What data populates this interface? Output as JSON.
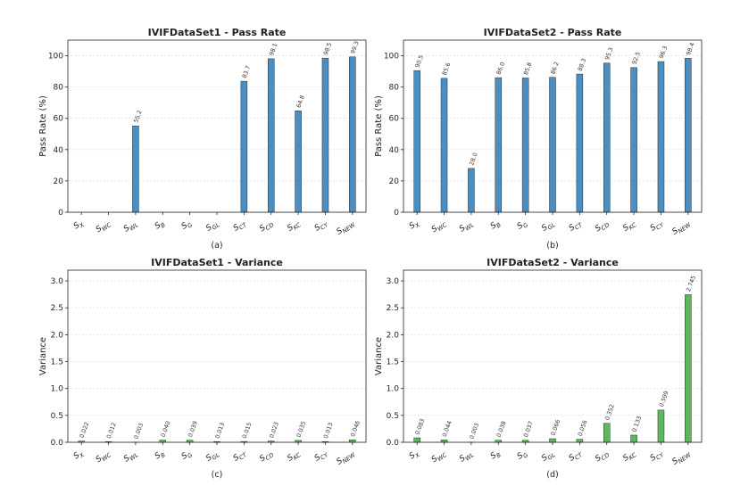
{
  "chart_data": [
    {
      "id": "a",
      "type": "bar",
      "title": "IVIFDataSet1 - Pass Rate",
      "ylabel": "Pass Rate (%)",
      "xlabel": "",
      "caption": "(a)",
      "color": "#4a8ec2",
      "grid": true,
      "ylim": [
        0,
        110
      ],
      "yticks": [
        0,
        20,
        40,
        60,
        80,
        100
      ],
      "ytick_labels": [
        "0",
        "20",
        "40",
        "60",
        "80",
        "100"
      ],
      "categories": [
        {
          "base": "S",
          "sub": "X"
        },
        {
          "base": "S",
          "sub": "WC"
        },
        {
          "base": "S",
          "sub": "WL"
        },
        {
          "base": "S",
          "sub": "B"
        },
        {
          "base": "S",
          "sub": "G"
        },
        {
          "base": "S",
          "sub": "GL"
        },
        {
          "base": "S",
          "sub": "CT"
        },
        {
          "base": "S",
          "sub": "CD"
        },
        {
          "base": "S",
          "sub": "KC"
        },
        {
          "base": "S",
          "sub": "CY"
        },
        {
          "base": "S",
          "sub": "NEW"
        }
      ],
      "values": [
        0,
        0,
        55.2,
        0,
        0,
        0,
        83.7,
        98.1,
        64.8,
        98.5,
        99.3
      ],
      "value_labels": [
        "",
        "",
        "55.2",
        "",
        "",
        "",
        "83.7",
        "98.1",
        "64.8",
        "98.5",
        "99.3"
      ]
    },
    {
      "id": "b",
      "type": "bar",
      "title": "IVIFDataSet2 - Pass Rate",
      "ylabel": "Pass Rate (%)",
      "xlabel": "",
      "caption": "(b)",
      "color": "#4a8ec2",
      "grid": true,
      "ylim": [
        0,
        110
      ],
      "yticks": [
        0,
        20,
        40,
        60,
        80,
        100
      ],
      "ytick_labels": [
        "0",
        "20",
        "40",
        "60",
        "80",
        "100"
      ],
      "categories": [
        {
          "base": "S",
          "sub": "X"
        },
        {
          "base": "S",
          "sub": "WC"
        },
        {
          "base": "S",
          "sub": "WL"
        },
        {
          "base": "S",
          "sub": "B"
        },
        {
          "base": "S",
          "sub": "G"
        },
        {
          "base": "S",
          "sub": "GL"
        },
        {
          "base": "S",
          "sub": "CT"
        },
        {
          "base": "S",
          "sub": "CD"
        },
        {
          "base": "S",
          "sub": "KC"
        },
        {
          "base": "S",
          "sub": "CY"
        },
        {
          "base": "S",
          "sub": "NEW"
        }
      ],
      "values": [
        90.5,
        85.6,
        28.0,
        86.0,
        85.8,
        86.2,
        88.3,
        95.3,
        92.5,
        96.3,
        98.4
      ],
      "value_labels": [
        "90.5",
        "85.6",
        "28.0",
        "86.0",
        "85.8",
        "86.2",
        "88.3",
        "95.3",
        "92.5",
        "96.3",
        "98.4"
      ]
    },
    {
      "id": "c",
      "type": "bar",
      "title": "IVIFDataSet1 - Variance",
      "ylabel": "Variance",
      "xlabel": "",
      "caption": "(c)",
      "color": "#5cb85c",
      "grid": true,
      "ylim": [
        0,
        3.2
      ],
      "yticks": [
        0,
        0.5,
        1,
        1.5,
        2,
        2.5,
        3
      ],
      "ytick_labels": [
        "0.0",
        "0.5",
        "1.0",
        "1.5",
        "2.0",
        "2.5",
        "3.0"
      ],
      "categories": [
        {
          "base": "S",
          "sub": "X"
        },
        {
          "base": "S",
          "sub": "WC"
        },
        {
          "base": "S",
          "sub": "WL"
        },
        {
          "base": "S",
          "sub": "B"
        },
        {
          "base": "S",
          "sub": "G"
        },
        {
          "base": "S",
          "sub": "GL"
        },
        {
          "base": "S",
          "sub": "CT"
        },
        {
          "base": "S",
          "sub": "CD"
        },
        {
          "base": "S",
          "sub": "KC"
        },
        {
          "base": "S",
          "sub": "CY"
        },
        {
          "base": "S",
          "sub": "NEW"
        }
      ],
      "values": [
        0.022,
        0.012,
        0.003,
        0.04,
        0.039,
        0.013,
        0.015,
        0.023,
        0.035,
        0.013,
        0.046
      ],
      "value_labels": [
        "0.022",
        "0.012",
        "0.003",
        "0.040",
        "0.039",
        "0.013",
        "0.015",
        "0.023",
        "0.035",
        "0.013",
        "0.046"
      ]
    },
    {
      "id": "d",
      "type": "bar",
      "title": "IVIFDataSet2 - Variance",
      "ylabel": "Variance",
      "xlabel": "",
      "caption": "(d)",
      "color": "#5cb85c",
      "grid": true,
      "ylim": [
        0,
        3.2
      ],
      "yticks": [
        0,
        0.5,
        1,
        1.5,
        2,
        2.5,
        3
      ],
      "ytick_labels": [
        "0.0",
        "0.5",
        "1.0",
        "1.5",
        "2.0",
        "2.5",
        "3.0"
      ],
      "categories": [
        {
          "base": "S",
          "sub": "X"
        },
        {
          "base": "S",
          "sub": "WC"
        },
        {
          "base": "S",
          "sub": "WL"
        },
        {
          "base": "S",
          "sub": "B"
        },
        {
          "base": "S",
          "sub": "G"
        },
        {
          "base": "S",
          "sub": "GL"
        },
        {
          "base": "S",
          "sub": "CT"
        },
        {
          "base": "S",
          "sub": "CD"
        },
        {
          "base": "S",
          "sub": "KC"
        },
        {
          "base": "S",
          "sub": "CY"
        },
        {
          "base": "S",
          "sub": "NEW"
        }
      ],
      "values": [
        0.083,
        0.044,
        0.003,
        0.038,
        0.037,
        0.066,
        0.056,
        0.352,
        0.133,
        0.599,
        2.745
      ],
      "value_labels": [
        "0.083",
        "0.044",
        "0.003",
        "0.038",
        "0.037",
        "0.066",
        "0.056",
        "0.352",
        "0.133",
        "0.599",
        "2.745"
      ]
    }
  ]
}
